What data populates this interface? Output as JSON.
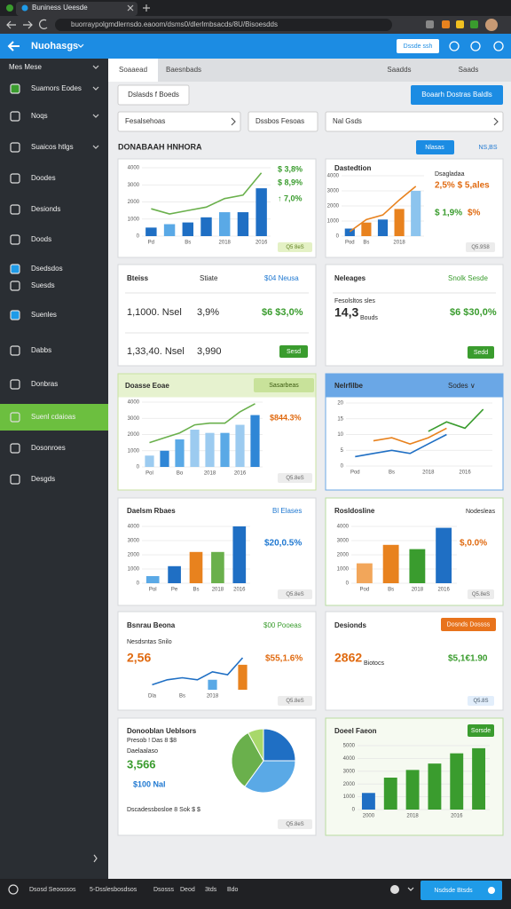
{
  "browser": {
    "tab": "Buniness Ueesde",
    "url": "buorraypolgmdlernsdo.eaoom/dsms0/dlerlmbsacds/8U/Bisoesdds"
  },
  "header": {
    "title": "Nuohasgs",
    "button": "Dssde ssh"
  },
  "sidebar": {
    "items": [
      "Mes Mese",
      "Suamors Eodes",
      "Noqs",
      "Suaicos htlgs",
      "Doodes",
      "Desionds",
      "Doods",
      "Dsedsdos",
      "Suesds",
      "Suenles",
      "Dabbs",
      "Donbras",
      "Suenl cdaioas",
      "Dosonroes",
      "Desgds"
    ]
  },
  "tabs": [
    "Soaaead",
    "Baesnbads",
    "Saadds",
    "Saads"
  ],
  "toolbar": {
    "left_button": "Dslasds f Boeds",
    "right_button": "Boaarh Dostras Baldls"
  },
  "filters": [
    "Fesalsehoas",
    "Dssbos Fesoas",
    "Nal Gsds"
  ],
  "section": {
    "title": "DONABAAH HNHORA",
    "button": "Nlasas",
    "link": "NS,BS"
  },
  "panels": [
    {
      "texts": [
        "$ 3,8%",
        "$ 8,9%",
        "↑ 7,0%"
      ],
      "badge": "Q5 8eS",
      "chart": {
        "type": "combo",
        "categories": [
          "Pd",
          null,
          "Bs",
          null,
          "2018",
          null,
          "2016"
        ],
        "ylim": [
          0,
          4000
        ],
        "yticks": [
          0,
          1000,
          2000,
          3000,
          4000
        ],
        "series": [
          {
            "type": "bar",
            "colors": [
              "#1f6fc4",
              "#5aa9e6",
              "#1f6fc4",
              "#1f6fc4",
              "#5aa9e6",
              "#1f6fc4",
              "#1f6fc4"
            ],
            "values": [
              500,
              700,
              800,
              1100,
              1400,
              1400,
              2800
            ]
          },
          {
            "type": "line",
            "color": "#6ab04c",
            "values": [
              1600,
              1300,
              1500,
              1700,
              2200,
              2400,
              3700
            ]
          }
        ]
      }
    },
    {
      "title": "Dastedtion",
      "texts": [
        "Dsagladaa",
        "2,5% $ 5,ales",
        "$ 1,9%",
        "$%"
      ],
      "badge": "Q5.9S8",
      "chart": {
        "type": "combo",
        "categories": [
          "Pod",
          "Bs",
          null,
          "2018",
          null
        ],
        "ylim": [
          0,
          4000
        ],
        "yticks": [
          0,
          1000,
          2000,
          3000,
          4000
        ],
        "series": [
          {
            "type": "bar",
            "colors": [
              "#1f6fc4",
              "#e8821e",
              "#1f6fc4",
              "#e8821e",
              "#8cc4ee"
            ],
            "values": [
              500,
              900,
              1100,
              1800,
              3000
            ]
          },
          {
            "type": "line",
            "color": "#e8821e",
            "values": [
              300,
              1100,
              1400,
              2400,
              3300
            ]
          }
        ]
      }
    },
    {
      "texts": [
        "Bteiss",
        "Stiate",
        "$04 Neusa",
        "1,1000. Nsel",
        "3,9%",
        "$6 $3,0%",
        "1,33,40. Nsel",
        "3,990"
      ],
      "button": "Sesd"
    },
    {
      "title": "Neleages",
      "texts": [
        "Snolk Sesde",
        "Fesolsltos sles",
        "14,3",
        "Bouds",
        "$6 $30,0%"
      ],
      "button": "Sedd"
    },
    {
      "title": "Doasse Eoae",
      "tag": "Sasarbeas",
      "texts": [
        "$844.3%"
      ],
      "badge": "Q5.8eS",
      "chart": {
        "type": "combo",
        "categories": [
          "Pol",
          null,
          "Bo",
          null,
          "2018",
          null,
          "2016",
          null
        ],
        "ylim": [
          0,
          4000
        ],
        "yticks": [
          0,
          1000,
          2000,
          3000,
          4000
        ],
        "series": [
          {
            "type": "bar",
            "colors": [
              "#9ccbf0",
              "#2f86d6",
              "#5aa9e6",
              "#9ccbf0",
              "#9ccbf0",
              "#5aa9e6",
              "#9ccbf0",
              "#2f86d6"
            ],
            "values": [
              700,
              1000,
              1700,
              2300,
              2100,
              2100,
              2600,
              3200
            ]
          },
          {
            "type": "line",
            "color": "#6ab04c",
            "values": [
              1500,
              1800,
              2100,
              2600,
              2700,
              2700,
              3400,
              3900
            ]
          }
        ]
      }
    },
    {
      "title": "Nelrfilbe",
      "texts": [
        "Sodes ∨"
      ],
      "chart": {
        "type": "line",
        "categories": [
          "Pod",
          null,
          "Bs",
          null,
          "2018",
          null,
          "2016",
          null
        ],
        "ylim": [
          0,
          20
        ],
        "yticks": [
          0,
          5,
          10,
          15,
          20
        ],
        "series": [
          {
            "type": "line",
            "color": "#1f6fc4",
            "values": [
              3,
              4,
              5,
              4,
              7,
              10,
              null,
              null
            ]
          },
          {
            "type": "line",
            "color": "#e8821e",
            "values": [
              null,
              8,
              9,
              7,
              9,
              12,
              null,
              null
            ]
          },
          {
            "type": "line",
            "color": "#3a9c2e",
            "values": [
              null,
              null,
              null,
              null,
              11,
              14,
              12,
              18
            ]
          }
        ]
      }
    },
    {
      "title": "Daelsm Rbaes",
      "texts": [
        "Bl Elases",
        "$20,0.5%"
      ],
      "badge": "Q5.8eS",
      "chart": {
        "type": "bar",
        "categories": [
          "Pol",
          "Pe",
          "Bs",
          "2018",
          "2016"
        ],
        "ylim": [
          0,
          4000
        ],
        "yticks": [
          0,
          1000,
          2000,
          3000,
          4000
        ],
        "series": [
          {
            "type": "bar",
            "colors": [
              "#5aa9e6",
              "#1f6fc4",
              "#e8821e",
              "#6ab04c",
              "#1f6fc4"
            ],
            "values": [
              500,
              1200,
              2200,
              2200,
              4000
            ]
          }
        ]
      }
    },
    {
      "title": "Rosldosline",
      "texts": [
        "Nodesleas",
        "$,0.0%"
      ],
      "badge": "Q5.8eS",
      "chart": {
        "type": "bar",
        "categories": [
          "Pod",
          "Bs",
          "2018",
          "2016"
        ],
        "ylim": [
          0,
          4000
        ],
        "yticks": [
          0,
          1000,
          2000,
          3000,
          4000
        ],
        "series": [
          {
            "type": "bar",
            "colors": [
              "#f2a65a",
              "#e8821e",
              "#3a9c2e",
              "#1f6fc4"
            ],
            "values": [
              1400,
              2700,
              2400,
              3900
            ]
          }
        ]
      }
    },
    {
      "title": "Bsnrau Beona",
      "texts": [
        "$00 Pooeas",
        "Nesdsntas Snilo",
        "2,56",
        "$55,1.6%"
      ],
      "badge": "Q5.8eS",
      "chart": {
        "type": "combo",
        "categories": [
          "Dla",
          null,
          "Bs",
          null,
          "2018",
          null,
          null
        ],
        "ylim": [
          0,
          4000
        ],
        "series": [
          {
            "type": "bar",
            "colors": [
              null,
              null,
              null,
              null,
              "#5aa9e6",
              null,
              "#e8821e"
            ],
            "values": [
              null,
              null,
              null,
              null,
              1000,
              null,
              2500
            ]
          },
          {
            "type": "line",
            "color": "#1f6fc4",
            "values": [
              500,
              1000,
              1200,
              1000,
              1800,
              1500,
              3200
            ]
          }
        ]
      }
    },
    {
      "title": "Desionds",
      "button": "Dosnds Dossss",
      "texts": [
        "2862",
        "Biotocs",
        "$5,1€1.90"
      ],
      "badge": "Q5.8S"
    },
    {
      "title": "Donooblan Ueblsors",
      "texts": [
        "Presob ! Das 8 $8",
        "Daelaalaso",
        "3,566",
        "$100 Nal",
        "Dscadessbosloe 8 Sok $ $"
      ],
      "badge": "Q5.8eS",
      "chart": {
        "type": "pie",
        "values": [
          25,
          35,
          32,
          8
        ],
        "colors": [
          "#1f6fc4",
          "#5aa9e6",
          "#6ab04c",
          "#a8d86a"
        ]
      }
    },
    {
      "title": "Doeel Faeon",
      "tag": "Sorsde",
      "chart": {
        "type": "bar",
        "categories": [
          "2000",
          null,
          "2018",
          null,
          "2016",
          null
        ],
        "ylim": [
          0,
          5000
        ],
        "yticks": [
          0,
          1000,
          2000,
          3000,
          4000,
          5000
        ],
        "series": [
          {
            "type": "bar",
            "colors": [
              "#1f6fc4",
              "#3a9c2e",
              "#3a9c2e",
              "#3a9c2e",
              "#3a9c2e",
              "#3a9c2e"
            ],
            "values": [
              1300,
              2500,
              3100,
              3600,
              4400,
              4800
            ]
          }
        ]
      }
    }
  ],
  "footer": {
    "items": [
      "Dsosd Seoossos",
      "5-Dsslesbosdsos",
      "Dsosss",
      "Deod",
      "3tds",
      "Bdo"
    ],
    "button": "Nsdsde Btsds"
  }
}
